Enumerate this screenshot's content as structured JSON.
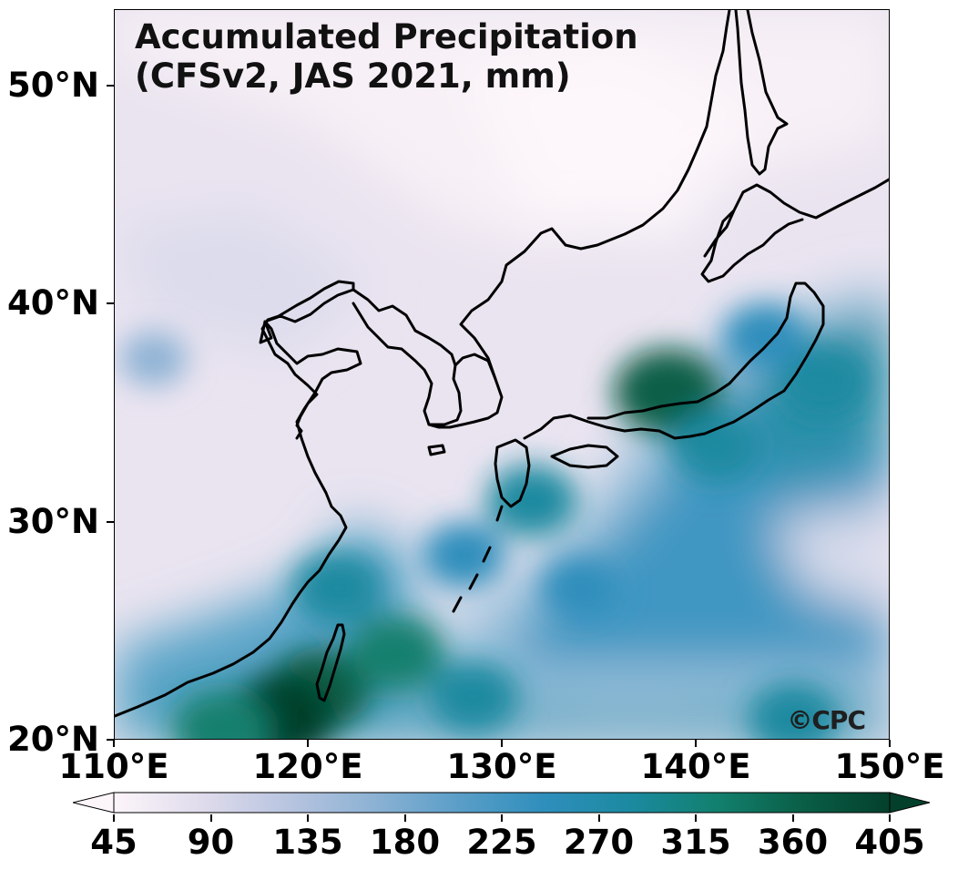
{
  "title": "Accumulated Precipitation\n(CFSv2, JAS 2021, mm)",
  "credit": "©CPC",
  "axes": {
    "lat_ticks": [
      {
        "value": 20,
        "label": "20°N"
      },
      {
        "value": 30,
        "label": "30°N"
      },
      {
        "value": 40,
        "label": "40°N"
      },
      {
        "value": 50,
        "label": "50°N"
      }
    ],
    "lon_ticks": [
      {
        "value": 110,
        "label": "110°E"
      },
      {
        "value": 120,
        "label": "120°E"
      },
      {
        "value": 130,
        "label": "130°E"
      },
      {
        "value": 140,
        "label": "140°E"
      },
      {
        "value": 150,
        "label": "150°E"
      }
    ],
    "lon_range": [
      110,
      150
    ],
    "lat_range": [
      20,
      53.5
    ]
  },
  "colorbar": {
    "ticks": [
      "45",
      "90",
      "135",
      "180",
      "225",
      "270",
      "315",
      "360",
      "405"
    ],
    "range": [
      45,
      405
    ],
    "extend": "both",
    "colors": [
      "#fcf5fa",
      "#e0dcec",
      "#b9c5e0",
      "#8db2d4",
      "#5a9ec8",
      "#2f8ebc",
      "#1b8aa0",
      "#12806e",
      "#0a5e46",
      "#03402c"
    ]
  },
  "field_features": [
    {
      "lon": 120.5,
      "lat": 22.3,
      "mm": 360
    },
    {
      "lon": 118.5,
      "lat": 21.0,
      "mm": 390
    },
    {
      "lon": 115.5,
      "lat": 20.5,
      "mm": 330
    },
    {
      "lon": 121.5,
      "lat": 27.0,
      "mm": 300
    },
    {
      "lon": 124.5,
      "lat": 24.0,
      "mm": 320
    },
    {
      "lon": 128.5,
      "lat": 22.0,
      "mm": 300
    },
    {
      "lon": 131.5,
      "lat": 31.0,
      "mm": 300
    },
    {
      "lon": 138.5,
      "lat": 36.0,
      "mm": 380
    },
    {
      "lon": 141.0,
      "lat": 33.5,
      "mm": 300
    },
    {
      "lon": 146.5,
      "lat": 36.5,
      "mm": 290
    },
    {
      "lon": 143.5,
      "lat": 38.5,
      "mm": 260
    },
    {
      "lon": 145.0,
      "lat": 21.0,
      "mm": 300
    },
    {
      "lon": 134.0,
      "lat": 27.0,
      "mm": 230
    },
    {
      "lon": 128.0,
      "lat": 28.5,
      "mm": 260
    },
    {
      "lon": 112.0,
      "lat": 37.5,
      "mm": 180
    }
  ]
}
